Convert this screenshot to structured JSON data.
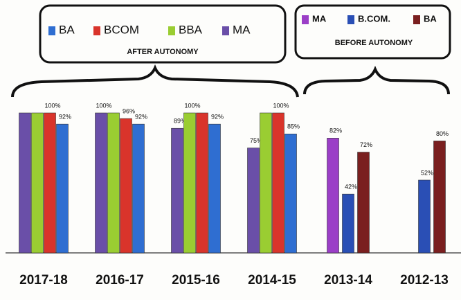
{
  "chart_data": {
    "type": "bar",
    "categories": [
      "2017-18",
      "2016-17",
      "2015-16",
      "2014-15",
      "2013-14",
      "2012-13"
    ],
    "ylim": [
      0,
      100
    ],
    "legends": [
      {
        "title": "AFTER AUTONOMY",
        "legend_reversed": true,
        "series": [
          {
            "name": "MA",
            "color": "#6a4fa8",
            "values": [
              100,
              100,
              89,
              75,
              null,
              null
            ],
            "value_labels": [
              null,
              "100%",
              "89%",
              "75%",
              null,
              null
            ]
          },
          {
            "name": "BBA",
            "color": "#9acd32",
            "values": [
              100,
              100,
              100,
              100,
              null,
              null
            ],
            "value_labels": [
              null,
              null,
              "100%",
              null,
              null,
              null
            ]
          },
          {
            "name": "BCOM",
            "color": "#d9342b",
            "values": [
              100,
              96,
              100,
              100,
              null,
              null
            ],
            "value_labels": [
              "100%",
              "96%",
              null,
              "100%",
              null,
              null
            ]
          },
          {
            "name": "BA",
            "color": "#2f6ed1",
            "values": [
              92,
              92,
              92,
              85,
              null,
              null
            ],
            "value_labels": [
              "92%",
              "92%",
              "92%",
              "85%",
              null,
              null
            ]
          }
        ]
      },
      {
        "title": "BEFORE AUTONOMY",
        "series": [
          {
            "name": "MA",
            "color": "#9b3fc7",
            "values": [
              null,
              null,
              null,
              null,
              82,
              null
            ],
            "value_labels": [
              null,
              null,
              null,
              null,
              "82%",
              null
            ]
          },
          {
            "name": "B.COM.",
            "color": "#2a4fb5",
            "values": [
              null,
              null,
              null,
              null,
              42,
              52
            ],
            "value_labels": [
              null,
              null,
              null,
              null,
              "42%",
              "52%"
            ]
          },
          {
            "name": "BA",
            "color": "#7a1f1f",
            "values": [
              null,
              null,
              null,
              null,
              72,
              80
            ],
            "value_labels": [
              null,
              null,
              null,
              null,
              "72%",
              "80%"
            ]
          }
        ]
      }
    ]
  }
}
